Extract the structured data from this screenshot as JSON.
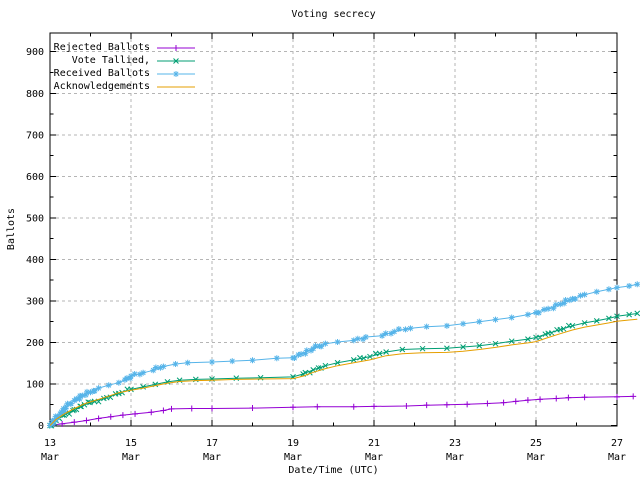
{
  "title": "Voting secrecy",
  "axes": {
    "xlabel": "Date/Time (UTC)",
    "ylabel": "Ballots",
    "y_ticks": [
      0,
      100,
      200,
      300,
      400,
      500,
      600,
      700,
      800,
      900
    ],
    "y_minor_ticks": [
      50,
      150,
      250,
      350,
      450,
      550,
      650,
      750,
      850
    ],
    "x_ticks": [
      {
        "day": 13,
        "line1": "13",
        "line2": "Mar"
      },
      {
        "day": 15,
        "line1": "15",
        "line2": "Mar"
      },
      {
        "day": 17,
        "line1": "17",
        "line2": "Mar"
      },
      {
        "day": 19,
        "line1": "19",
        "line2": "Mar"
      },
      {
        "day": 21,
        "line1": "21",
        "line2": "Mar"
      },
      {
        "day": 23,
        "line1": "23",
        "line2": "Mar"
      },
      {
        "day": 25,
        "line1": "25",
        "line2": "Mar"
      },
      {
        "day": 27,
        "line1": "27",
        "line2": "Mar"
      }
    ],
    "x_minor_days": [
      14,
      16,
      18,
      20,
      22,
      24,
      26
    ],
    "ylim": [
      0,
      945
    ],
    "xlim_days": [
      13,
      27
    ],
    "grid": true
  },
  "colors": {
    "background": "#ffffff",
    "axis": "#000000",
    "grid": "#b5b5b5",
    "text": "#000000",
    "rejected": "#9400d3",
    "tallied": "#009e73",
    "received": "#56b4e9",
    "acknowledgements": "#e69f00"
  },
  "chart_data": {
    "type": "line",
    "title": "Voting secrecy",
    "xlabel": "Date/Time (UTC)",
    "ylabel": "Ballots",
    "x_unit": "day of March (UTC)",
    "legend_position": "top-left-inside",
    "series": [
      {
        "name": "Rejected Ballots",
        "color": "#9400d3",
        "marker": "plus",
        "points": [
          [
            13.0,
            0
          ],
          [
            13.3,
            4
          ],
          [
            13.6,
            8
          ],
          [
            13.9,
            12
          ],
          [
            14.2,
            17
          ],
          [
            14.5,
            21
          ],
          [
            14.8,
            25
          ],
          [
            15.1,
            28
          ],
          [
            15.5,
            32
          ],
          [
            15.8,
            36
          ],
          [
            16.0,
            40
          ],
          [
            16.5,
            41
          ],
          [
            17.0,
            41
          ],
          [
            18.0,
            42
          ],
          [
            19.0,
            44
          ],
          [
            19.6,
            45
          ],
          [
            20.5,
            45
          ],
          [
            21.0,
            46
          ],
          [
            21.8,
            47
          ],
          [
            22.3,
            49
          ],
          [
            22.8,
            50
          ],
          [
            23.3,
            51
          ],
          [
            23.8,
            53
          ],
          [
            24.2,
            55
          ],
          [
            24.5,
            58
          ],
          [
            24.8,
            61
          ],
          [
            25.1,
            63
          ],
          [
            25.5,
            65
          ],
          [
            25.8,
            67
          ],
          [
            26.2,
            68
          ],
          [
            27.0,
            69
          ],
          [
            27.4,
            70
          ]
        ]
      },
      {
        "name": "Vote Tallied,",
        "color": "#009e73",
        "marker": "cross",
        "points": [
          [
            13.0,
            0
          ],
          [
            13.15,
            12
          ],
          [
            13.35,
            25
          ],
          [
            13.6,
            38
          ],
          [
            13.85,
            50
          ],
          [
            14.1,
            58
          ],
          [
            14.4,
            67
          ],
          [
            14.7,
            77
          ],
          [
            15.0,
            87
          ],
          [
            15.3,
            93
          ],
          [
            15.6,
            99
          ],
          [
            15.9,
            105
          ],
          [
            16.2,
            109
          ],
          [
            16.6,
            111
          ],
          [
            17.0,
            112
          ],
          [
            17.6,
            114
          ],
          [
            18.2,
            115
          ],
          [
            19.0,
            117
          ],
          [
            19.25,
            124
          ],
          [
            19.5,
            134
          ],
          [
            19.8,
            144
          ],
          [
            20.1,
            151
          ],
          [
            20.5,
            158
          ],
          [
            20.9,
            166
          ],
          [
            21.3,
            177
          ],
          [
            21.7,
            183
          ],
          [
            22.2,
            185
          ],
          [
            22.8,
            186
          ],
          [
            23.2,
            189
          ],
          [
            23.6,
            192
          ],
          [
            24.0,
            197
          ],
          [
            24.4,
            203
          ],
          [
            24.8,
            208
          ],
          [
            25.0,
            212
          ],
          [
            25.3,
            222
          ],
          [
            25.6,
            231
          ],
          [
            25.9,
            240
          ],
          [
            26.2,
            247
          ],
          [
            26.5,
            252
          ],
          [
            26.8,
            258
          ],
          [
            27.0,
            263
          ],
          [
            27.3,
            267
          ],
          [
            27.5,
            270
          ]
        ]
      },
      {
        "name": "Received Ballots",
        "color": "#56b4e9",
        "marker": "star",
        "points": [
          [
            13.0,
            0
          ],
          [
            13.1,
            12
          ],
          [
            13.25,
            28
          ],
          [
            13.4,
            45
          ],
          [
            13.6,
            60
          ],
          [
            13.8,
            72
          ],
          [
            14.0,
            80
          ],
          [
            14.2,
            90
          ],
          [
            14.45,
            97
          ],
          [
            14.7,
            103
          ],
          [
            14.85,
            110
          ],
          [
            15.0,
            119
          ],
          [
            15.3,
            127
          ],
          [
            15.55,
            133
          ],
          [
            15.8,
            142
          ],
          [
            16.1,
            148
          ],
          [
            16.4,
            151
          ],
          [
            17.0,
            153
          ],
          [
            17.5,
            155
          ],
          [
            18.0,
            157
          ],
          [
            18.6,
            162
          ],
          [
            19.0,
            163
          ],
          [
            19.2,
            172
          ],
          [
            19.5,
            185
          ],
          [
            19.8,
            197
          ],
          [
            20.1,
            201
          ],
          [
            20.5,
            205
          ],
          [
            20.8,
            213
          ],
          [
            21.2,
            216
          ],
          [
            21.5,
            226
          ],
          [
            21.9,
            234
          ],
          [
            22.3,
            238
          ],
          [
            22.8,
            240
          ],
          [
            23.2,
            245
          ],
          [
            23.6,
            250
          ],
          [
            24.0,
            255
          ],
          [
            24.4,
            260
          ],
          [
            24.8,
            267
          ],
          [
            25.0,
            272
          ],
          [
            25.3,
            281
          ],
          [
            25.6,
            292
          ],
          [
            25.9,
            305
          ],
          [
            26.2,
            315
          ],
          [
            26.5,
            322
          ],
          [
            26.8,
            328
          ],
          [
            27.0,
            332
          ],
          [
            27.3,
            336
          ],
          [
            27.5,
            340
          ]
        ]
      },
      {
        "name": "Acknowledgements",
        "color": "#e69f00",
        "marker": "none",
        "points": [
          [
            13.0,
            0
          ],
          [
            13.15,
            15
          ],
          [
            13.35,
            28
          ],
          [
            13.6,
            41
          ],
          [
            13.85,
            52
          ],
          [
            14.1,
            60
          ],
          [
            14.4,
            69
          ],
          [
            14.7,
            79
          ],
          [
            15.0,
            85
          ],
          [
            15.3,
            90
          ],
          [
            15.6,
            96
          ],
          [
            15.9,
            102
          ],
          [
            16.2,
            106
          ],
          [
            16.6,
            108
          ],
          [
            17.0,
            109
          ],
          [
            17.6,
            111
          ],
          [
            18.2,
            112
          ],
          [
            19.0,
            113
          ],
          [
            19.25,
            119
          ],
          [
            19.5,
            128
          ],
          [
            19.8,
            137
          ],
          [
            20.1,
            144
          ],
          [
            20.5,
            151
          ],
          [
            20.9,
            158
          ],
          [
            21.3,
            168
          ],
          [
            21.7,
            173
          ],
          [
            22.2,
            175
          ],
          [
            22.8,
            176
          ],
          [
            23.2,
            179
          ],
          [
            23.6,
            183
          ],
          [
            24.0,
            188
          ],
          [
            24.4,
            194
          ],
          [
            24.8,
            199
          ],
          [
            25.0,
            202
          ],
          [
            25.3,
            212
          ],
          [
            25.6,
            221
          ],
          [
            25.9,
            230
          ],
          [
            26.2,
            237
          ],
          [
            26.5,
            242
          ],
          [
            26.8,
            247
          ],
          [
            27.0,
            251
          ],
          [
            27.3,
            254
          ],
          [
            27.5,
            256
          ]
        ]
      }
    ]
  }
}
